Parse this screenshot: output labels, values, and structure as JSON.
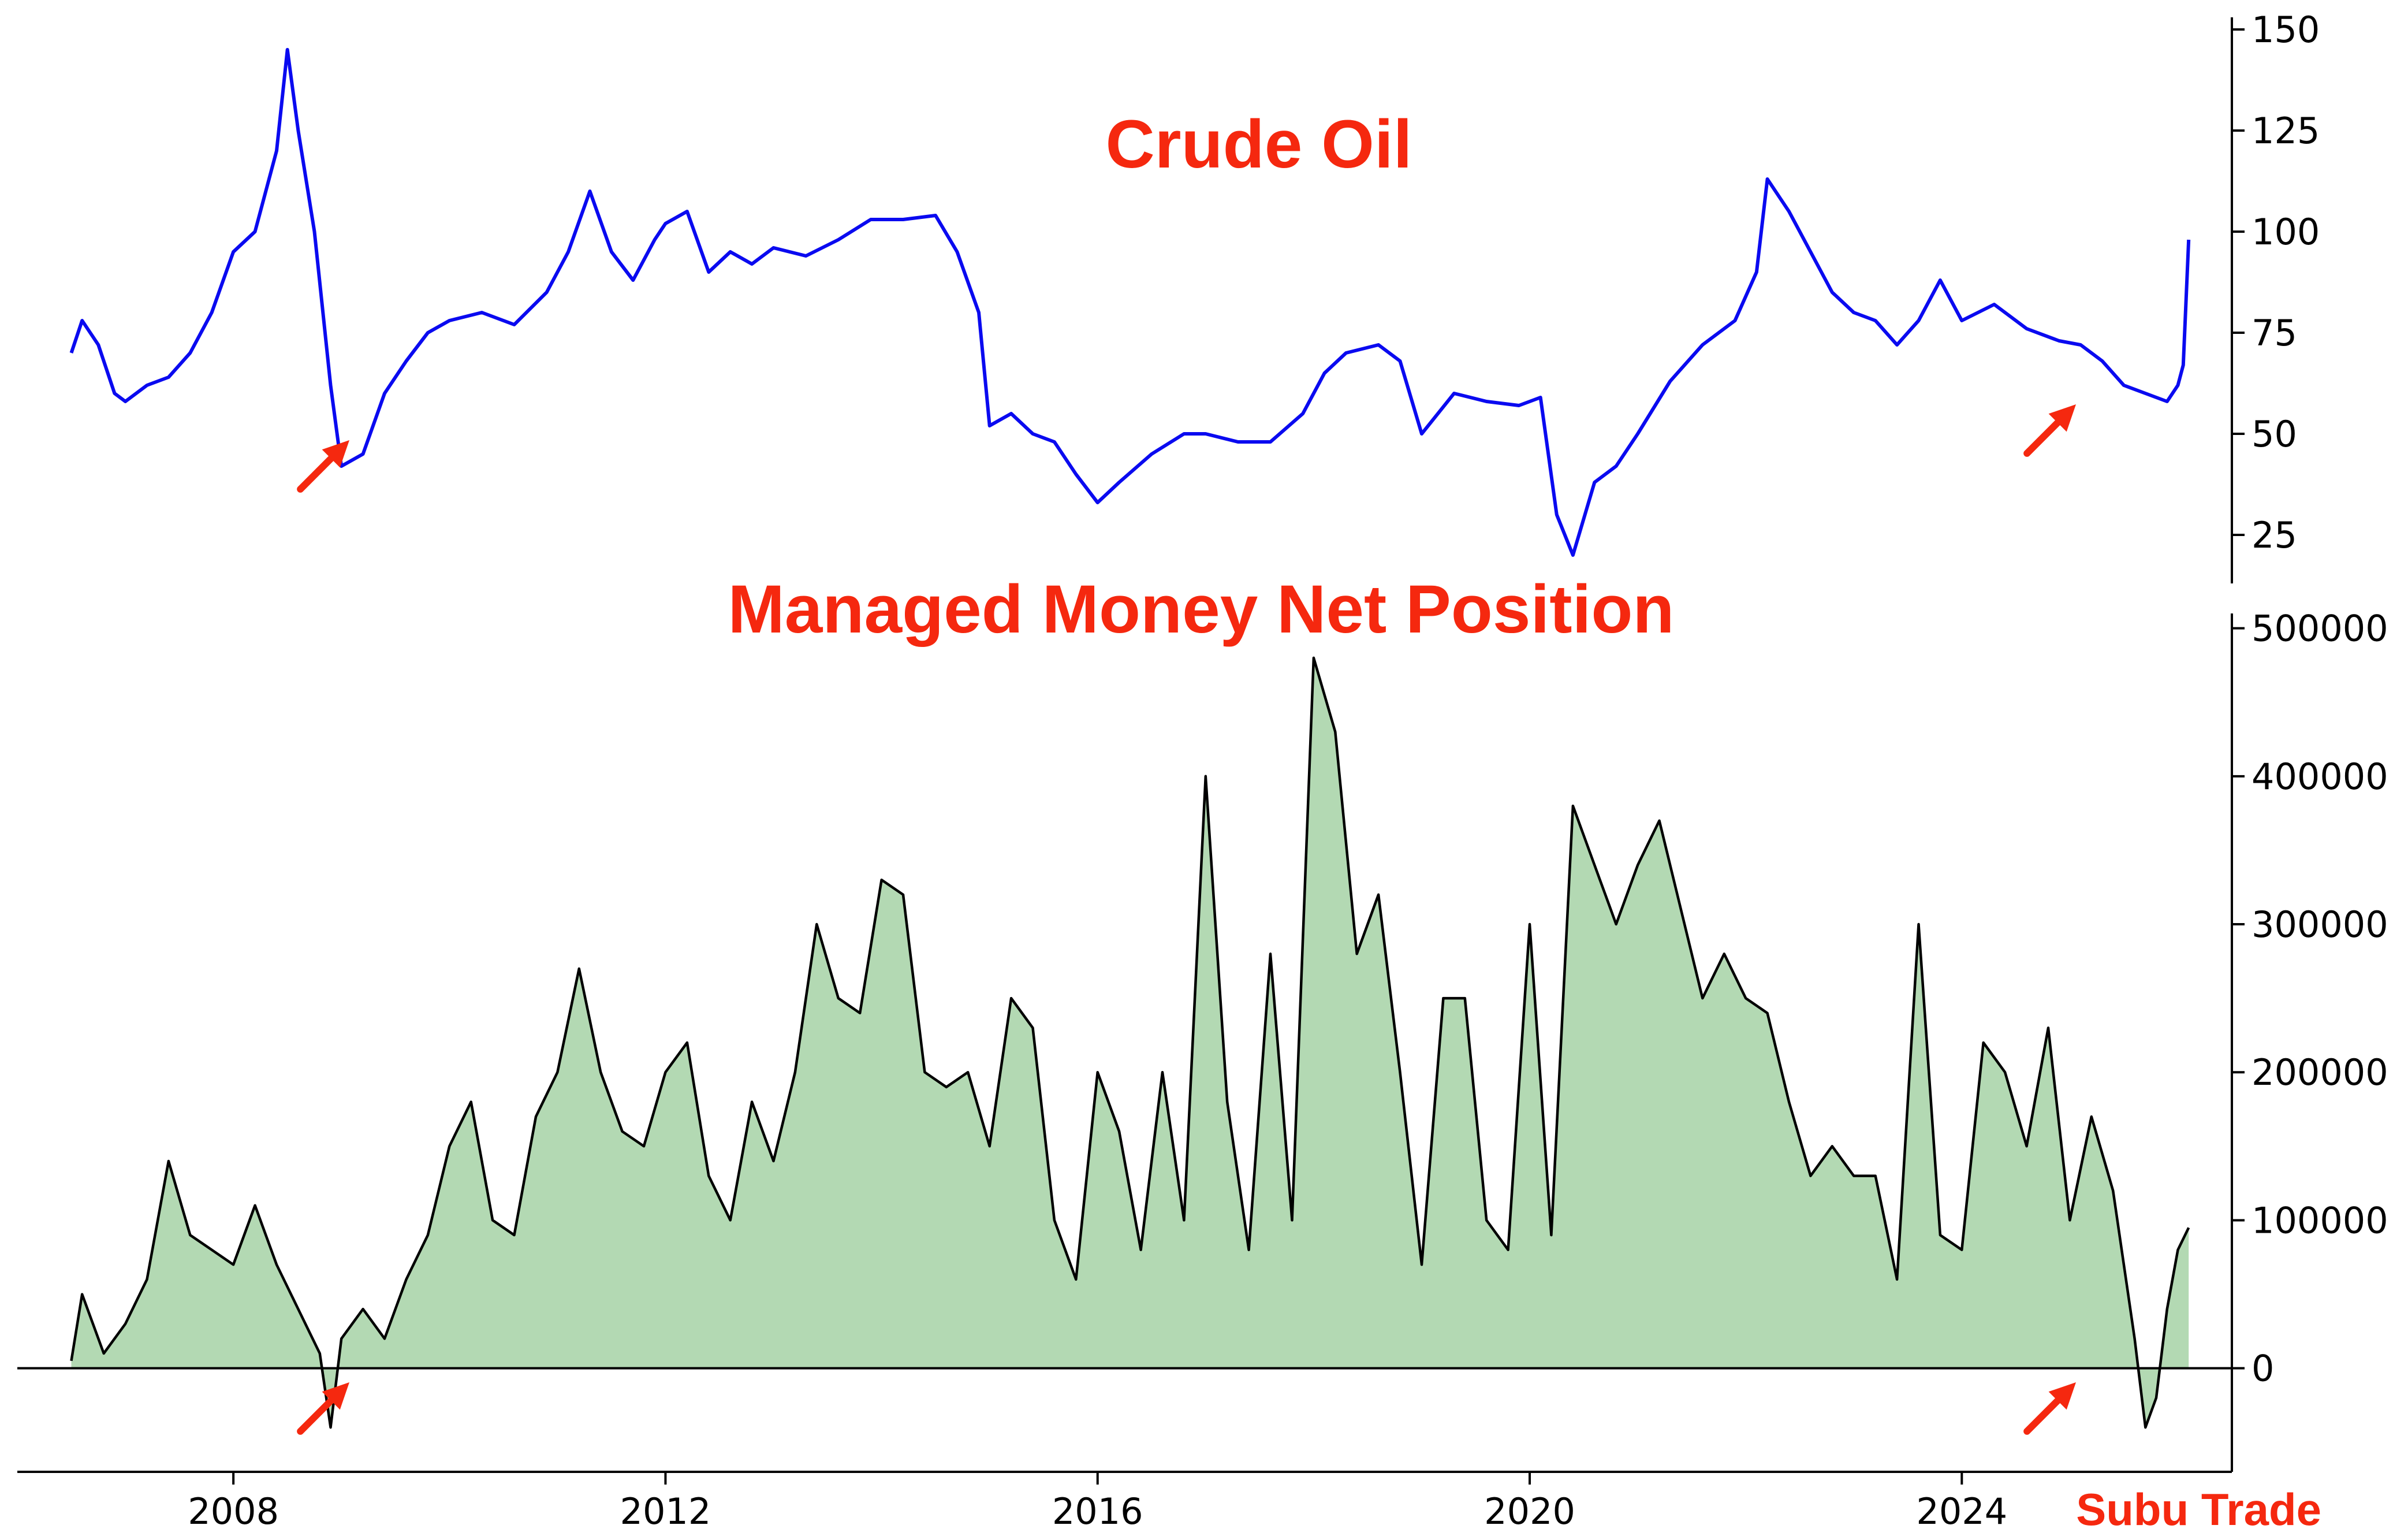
{
  "colors": {
    "oil_line": "#0a0af0",
    "position_line": "#000000",
    "position_fill": "#b3d9b3",
    "title": "#f5280f",
    "arrow": "#f5280f",
    "axis": "#000000"
  },
  "watermark": "Subu Trade",
  "chart_data": [
    {
      "type": "line",
      "title": "Crude Oil",
      "xlabel": "",
      "ylabel": "",
      "y_axis_side": "right",
      "ylim": [
        13,
        153
      ],
      "yticks": [
        25,
        50,
        75,
        100,
        125,
        150
      ],
      "ytick_labels": [
        "25",
        "50",
        "75",
        "100",
        "125",
        "150"
      ],
      "grid": false,
      "series": [
        {
          "x": [
            2006.5,
            2006.6,
            2006.75,
            2006.9,
            2007.0,
            2007.2,
            2007.4,
            2007.6,
            2007.8,
            2008.0,
            2008.2,
            2008.4,
            2008.5,
            2008.6,
            2008.75,
            2008.9,
            2009.0,
            2009.2,
            2009.4,
            2009.6,
            2009.8,
            2010.0,
            2010.3,
            2010.6,
            2010.9,
            2011.1,
            2011.3,
            2011.5,
            2011.7,
            2011.9,
            2012.0,
            2012.2,
            2012.4,
            2012.6,
            2012.8,
            2013.0,
            2013.3,
            2013.6,
            2013.9,
            2014.2,
            2014.5,
            2014.7,
            2014.9,
            2015.0,
            2015.2,
            2015.4,
            2015.6,
            2015.8,
            2016.0,
            2016.2,
            2016.5,
            2016.8,
            2017.0,
            2017.3,
            2017.6,
            2017.9,
            2018.1,
            2018.3,
            2018.6,
            2018.8,
            2019.0,
            2019.3,
            2019.6,
            2019.9,
            2020.1,
            2020.25,
            2020.4,
            2020.6,
            2020.8,
            2021.0,
            2021.3,
            2021.6,
            2021.9,
            2022.1,
            2022.2,
            2022.4,
            2022.6,
            2022.8,
            2023.0,
            2023.2,
            2023.4,
            2023.6,
            2023.8,
            2024.0,
            2024.3,
            2024.6,
            2024.9,
            2025.1,
            2025.3,
            2025.5,
            2025.7,
            2025.9,
            2026.0,
            2026.05,
            2026.1
          ],
          "y": [
            70,
            78,
            72,
            60,
            58,
            62,
            64,
            70,
            80,
            95,
            100,
            120,
            145,
            125,
            100,
            62,
            42,
            45,
            60,
            68,
            75,
            78,
            80,
            77,
            85,
            95,
            110,
            95,
            88,
            98,
            102,
            105,
            90,
            95,
            92,
            96,
            94,
            98,
            103,
            103,
            104,
            95,
            80,
            52,
            55,
            50,
            48,
            40,
            33,
            38,
            45,
            50,
            50,
            48,
            48,
            55,
            65,
            70,
            72,
            68,
            50,
            60,
            58,
            57,
            59,
            30,
            20,
            38,
            42,
            50,
            63,
            72,
            78,
            90,
            113,
            105,
            95,
            85,
            80,
            78,
            72,
            78,
            88,
            78,
            82,
            76,
            73,
            72,
            68,
            62,
            60,
            58,
            62,
            67,
            98
          ]
        }
      ],
      "annotations": [
        "arrow near 2008.8 low",
        "arrow near 2025.8 low"
      ]
    },
    {
      "type": "area",
      "title": "Managed Money Net Position",
      "xlabel": "",
      "ylabel": "",
      "y_axis_side": "right",
      "ylim": [
        -70000,
        510000
      ],
      "yticks": [
        0,
        100000,
        200000,
        300000,
        400000,
        500000
      ],
      "ytick_labels": [
        "0",
        "100000",
        "200000",
        "300000",
        "400000",
        "500000"
      ],
      "xlim": [
        2006.0,
        2026.5
      ],
      "xticks": [
        2008,
        2012,
        2016,
        2020,
        2024
      ],
      "xtick_labels": [
        "2008",
        "2012",
        "2016",
        "2020",
        "2024"
      ],
      "zero_line": true,
      "grid": false,
      "series": [
        {
          "x": [
            2006.5,
            2006.6,
            2006.8,
            2007.0,
            2007.2,
            2007.4,
            2007.6,
            2007.8,
            2008.0,
            2008.2,
            2008.4,
            2008.6,
            2008.8,
            2008.9,
            2009.0,
            2009.2,
            2009.4,
            2009.6,
            2009.8,
            2010.0,
            2010.2,
            2010.4,
            2010.6,
            2010.8,
            2011.0,
            2011.2,
            2011.4,
            2011.6,
            2011.8,
            2012.0,
            2012.2,
            2012.4,
            2012.6,
            2012.8,
            2013.0,
            2013.2,
            2013.4,
            2013.6,
            2013.8,
            2014.0,
            2014.2,
            2014.4,
            2014.6,
            2014.8,
            2015.0,
            2015.2,
            2015.4,
            2015.6,
            2015.8,
            2016.0,
            2016.2,
            2016.4,
            2016.6,
            2016.8,
            2017.0,
            2017.2,
            2017.4,
            2017.6,
            2017.8,
            2018.0,
            2018.2,
            2018.4,
            2018.6,
            2018.8,
            2019.0,
            2019.2,
            2019.4,
            2019.6,
            2019.8,
            2020.0,
            2020.2,
            2020.4,
            2020.6,
            2020.8,
            2021.0,
            2021.2,
            2021.4,
            2021.6,
            2021.8,
            2022.0,
            2022.2,
            2022.4,
            2022.6,
            2022.8,
            2023.0,
            2023.2,
            2023.4,
            2023.6,
            2023.8,
            2024.0,
            2024.2,
            2024.4,
            2024.6,
            2024.8,
            2025.0,
            2025.2,
            2025.4,
            2025.6,
            2025.7,
            2025.8,
            2025.9,
            2026.0,
            2026.1
          ],
          "y": [
            5000,
            50000,
            10000,
            30000,
            60000,
            140000,
            90000,
            80000,
            70000,
            110000,
            70000,
            40000,
            10000,
            -40000,
            20000,
            40000,
            20000,
            60000,
            90000,
            150000,
            180000,
            100000,
            90000,
            170000,
            200000,
            270000,
            200000,
            160000,
            150000,
            200000,
            220000,
            130000,
            100000,
            180000,
            140000,
            200000,
            300000,
            250000,
            240000,
            330000,
            320000,
            200000,
            190000,
            200000,
            150000,
            250000,
            230000,
            100000,
            60000,
            200000,
            160000,
            80000,
            200000,
            100000,
            400000,
            180000,
            80000,
            280000,
            100000,
            480000,
            430000,
            280000,
            320000,
            200000,
            70000,
            250000,
            250000,
            100000,
            80000,
            300000,
            90000,
            380000,
            340000,
            300000,
            340000,
            370000,
            310000,
            250000,
            280000,
            250000,
            240000,
            180000,
            130000,
            150000,
            130000,
            130000,
            60000,
            300000,
            90000,
            80000,
            220000,
            200000,
            150000,
            230000,
            100000,
            170000,
            120000,
            20000,
            -40000,
            -20000,
            40000,
            80000,
            95000
          ]
        }
      ],
      "annotations": [
        "arrow near 2008.8 low",
        "arrow near 2025.8 low"
      ]
    }
  ]
}
